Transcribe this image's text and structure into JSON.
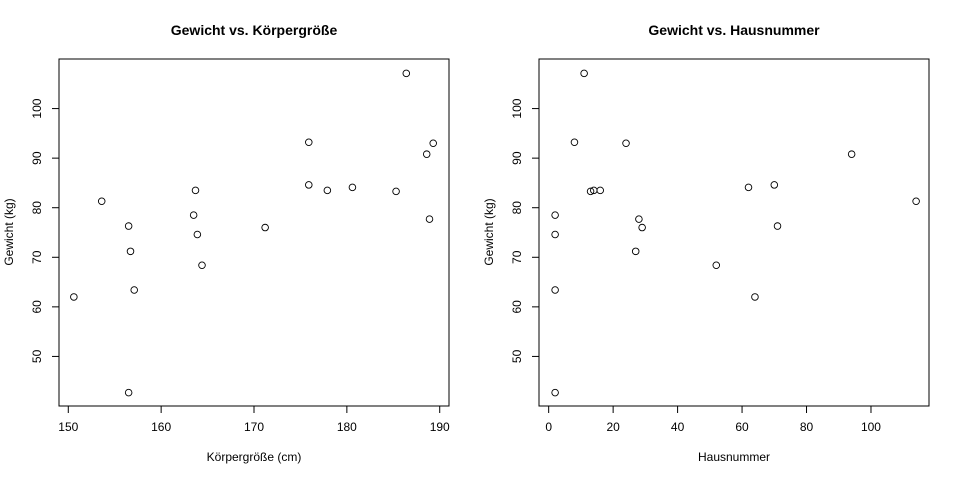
{
  "chart_data": [
    {
      "type": "scatter",
      "title": "Gewicht vs. Körpergröße",
      "xlabel": "Körpergröße (cm)",
      "ylabel": "Gewicht (kg)",
      "xlim": [
        149,
        191
      ],
      "ylim": [
        40,
        110
      ],
      "xticks": [
        150,
        160,
        170,
        180,
        190
      ],
      "yticks": [
        50,
        60,
        70,
        80,
        90,
        100
      ],
      "grid": false,
      "points": [
        {
          "x": 150.6,
          "y": 62.0
        },
        {
          "x": 153.6,
          "y": 81.3
        },
        {
          "x": 156.5,
          "y": 76.3
        },
        {
          "x": 156.5,
          "y": 42.7
        },
        {
          "x": 156.7,
          "y": 71.2
        },
        {
          "x": 157.1,
          "y": 63.4
        },
        {
          "x": 163.5,
          "y": 78.5
        },
        {
          "x": 163.7,
          "y": 83.5
        },
        {
          "x": 163.9,
          "y": 74.6
        },
        {
          "x": 164.4,
          "y": 68.4
        },
        {
          "x": 171.2,
          "y": 76.0
        },
        {
          "x": 175.9,
          "y": 84.6
        },
        {
          "x": 175.9,
          "y": 93.2
        },
        {
          "x": 177.9,
          "y": 83.5
        },
        {
          "x": 180.6,
          "y": 84.1
        },
        {
          "x": 185.3,
          "y": 83.3
        },
        {
          "x": 186.4,
          "y": 107.1
        },
        {
          "x": 188.6,
          "y": 90.8
        },
        {
          "x": 188.9,
          "y": 77.7
        },
        {
          "x": 189.3,
          "y": 93.0
        }
      ]
    },
    {
      "type": "scatter",
      "title": "Gewicht vs. Hausnummer",
      "xlabel": "Hausnummer",
      "ylabel": "Gewicht (kg)",
      "xlim": [
        -3,
        118
      ],
      "ylim": [
        40,
        110
      ],
      "xticks": [
        0,
        20,
        40,
        60,
        80,
        100
      ],
      "yticks": [
        50,
        60,
        70,
        80,
        90,
        100
      ],
      "grid": false,
      "points": [
        {
          "x": 2,
          "y": 42.7
        },
        {
          "x": 2,
          "y": 63.4
        },
        {
          "x": 2,
          "y": 74.6
        },
        {
          "x": 2,
          "y": 78.5
        },
        {
          "x": 8,
          "y": 93.2
        },
        {
          "x": 11,
          "y": 107.1
        },
        {
          "x": 13,
          "y": 83.3
        },
        {
          "x": 14,
          "y": 83.5
        },
        {
          "x": 16,
          "y": 83.5
        },
        {
          "x": 24,
          "y": 93.0
        },
        {
          "x": 27,
          "y": 71.2
        },
        {
          "x": 28,
          "y": 77.7
        },
        {
          "x": 29,
          "y": 76.0
        },
        {
          "x": 52,
          "y": 68.4
        },
        {
          "x": 62,
          "y": 84.1
        },
        {
          "x": 64,
          "y": 62.0
        },
        {
          "x": 70,
          "y": 84.6
        },
        {
          "x": 71,
          "y": 76.3
        },
        {
          "x": 94,
          "y": 90.8
        },
        {
          "x": 114,
          "y": 81.3
        }
      ]
    }
  ]
}
